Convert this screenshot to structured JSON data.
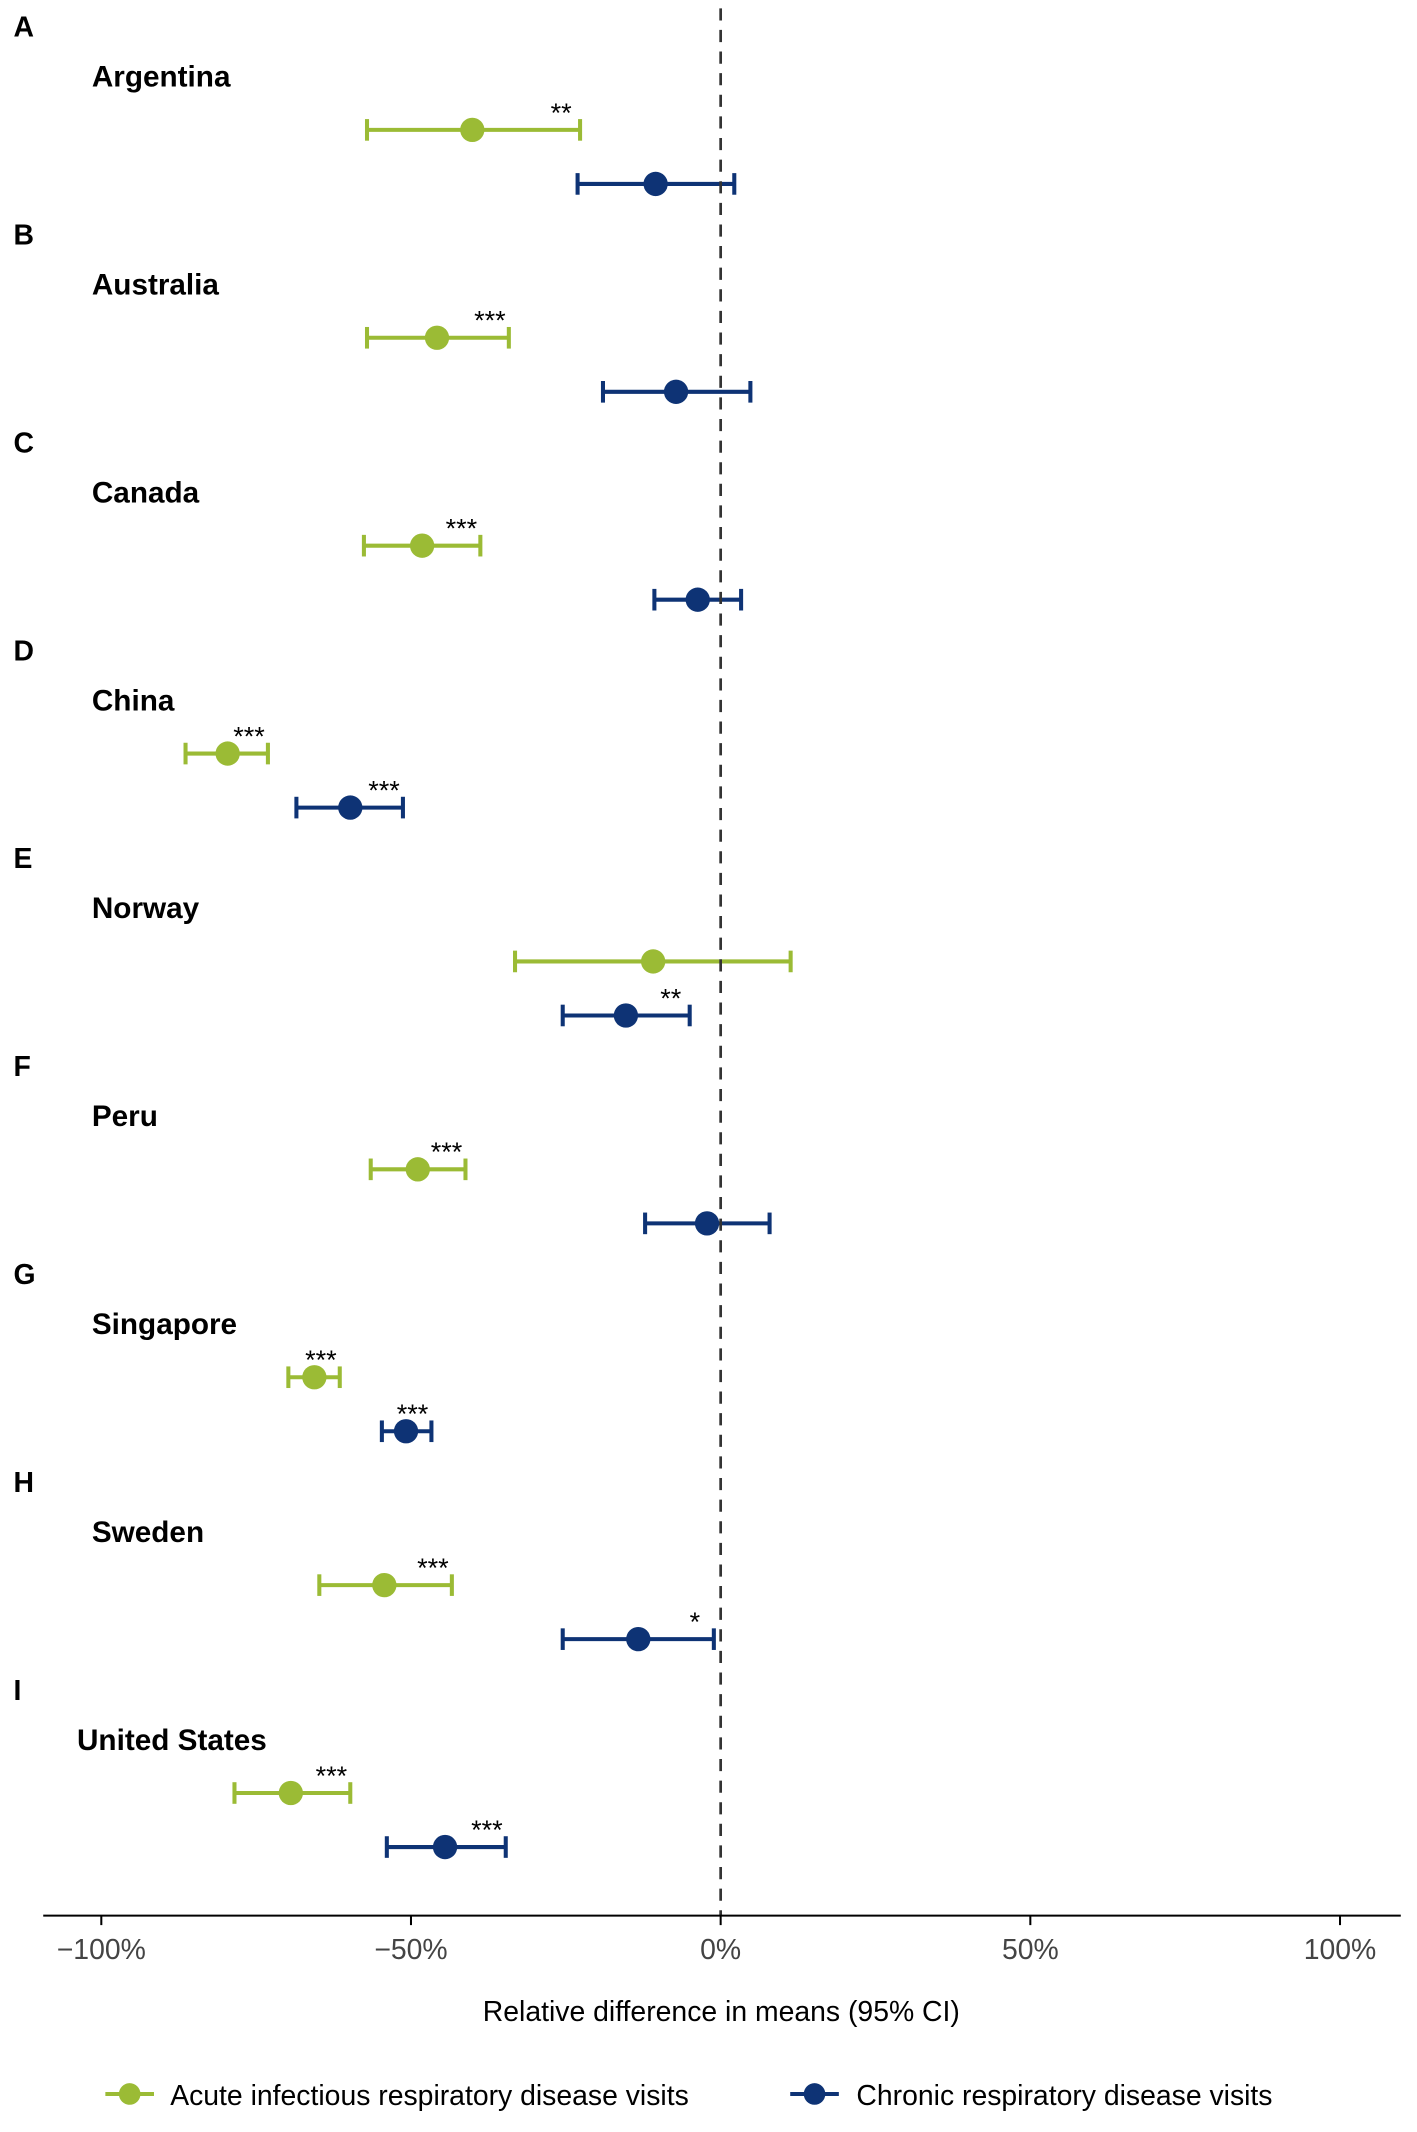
{
  "chart_data": {
    "type": "forest",
    "xlabel": "Relative difference in means (95% CI)",
    "xlim": [
      -100,
      100
    ],
    "xticks": [
      -100,
      -50,
      0,
      50,
      100
    ],
    "xtick_labels": [
      "−100%",
      "−50%",
      "0%",
      "50%",
      "100%"
    ],
    "reference_line": 0,
    "legend_position": "bottom",
    "series": [
      {
        "name": "Acute infectious respiratory disease visits",
        "key": "acute",
        "color": "#9bbb35"
      },
      {
        "name": "Chronic respiratory disease visits",
        "key": "chronic",
        "color": "#0e3375"
      }
    ],
    "panels": [
      {
        "letter": "A",
        "country": "Argentina",
        "acute": {
          "est": -40.1,
          "lo": -57.1,
          "hi": -22.7,
          "sig": "**"
        },
        "chronic": {
          "est": -10.5,
          "lo": -23.1,
          "hi": 2.2,
          "sig": ""
        }
      },
      {
        "letter": "B",
        "country": "Australia",
        "acute": {
          "est": -45.8,
          "lo": -57.1,
          "hi": -34.2,
          "sig": "***"
        },
        "chronic": {
          "est": -7.2,
          "lo": -19.0,
          "hi": 4.8,
          "sig": ""
        }
      },
      {
        "letter": "C",
        "country": "Canada",
        "acute": {
          "est": -48.2,
          "lo": -57.6,
          "hi": -38.8,
          "sig": "***"
        },
        "chronic": {
          "est": -3.7,
          "lo": -10.7,
          "hi": 3.3,
          "sig": ""
        }
      },
      {
        "letter": "D",
        "country": "China",
        "acute": {
          "est": -79.6,
          "lo": -86.4,
          "hi": -73.1,
          "sig": "***"
        },
        "chronic": {
          "est": -59.8,
          "lo": -68.5,
          "hi": -51.3,
          "sig": "***"
        }
      },
      {
        "letter": "E",
        "country": "Norway",
        "acute": {
          "est": -10.9,
          "lo": -33.2,
          "hi": 11.3,
          "sig": ""
        },
        "chronic": {
          "est": -15.3,
          "lo": -25.5,
          "hi": -5.0,
          "sig": "**"
        }
      },
      {
        "letter": "F",
        "country": "Peru",
        "acute": {
          "est": -48.9,
          "lo": -56.5,
          "hi": -41.2,
          "sig": "***"
        },
        "chronic": {
          "est": -2.2,
          "lo": -12.2,
          "hi": 7.9,
          "sig": ""
        }
      },
      {
        "letter": "G",
        "country": "Singapore",
        "acute": {
          "est": -65.6,
          "lo": -69.8,
          "hi": -61.5,
          "sig": "***"
        },
        "chronic": {
          "est": -50.8,
          "lo": -54.7,
          "hi": -46.7,
          "sig": "***"
        }
      },
      {
        "letter": "H",
        "country": "Sweden",
        "acute": {
          "est": -54.3,
          "lo": -64.8,
          "hi": -43.4,
          "sig": "***"
        },
        "chronic": {
          "est": -13.3,
          "lo": -25.5,
          "hi": -1.1,
          "sig": "*"
        }
      },
      {
        "letter": "I",
        "country": "United States",
        "acute": {
          "est": -69.4,
          "lo": -78.5,
          "hi": -59.8,
          "sig": "***"
        },
        "chronic": {
          "est": -44.5,
          "lo": -53.9,
          "hi": -34.7,
          "sig": "***"
        }
      }
    ]
  }
}
